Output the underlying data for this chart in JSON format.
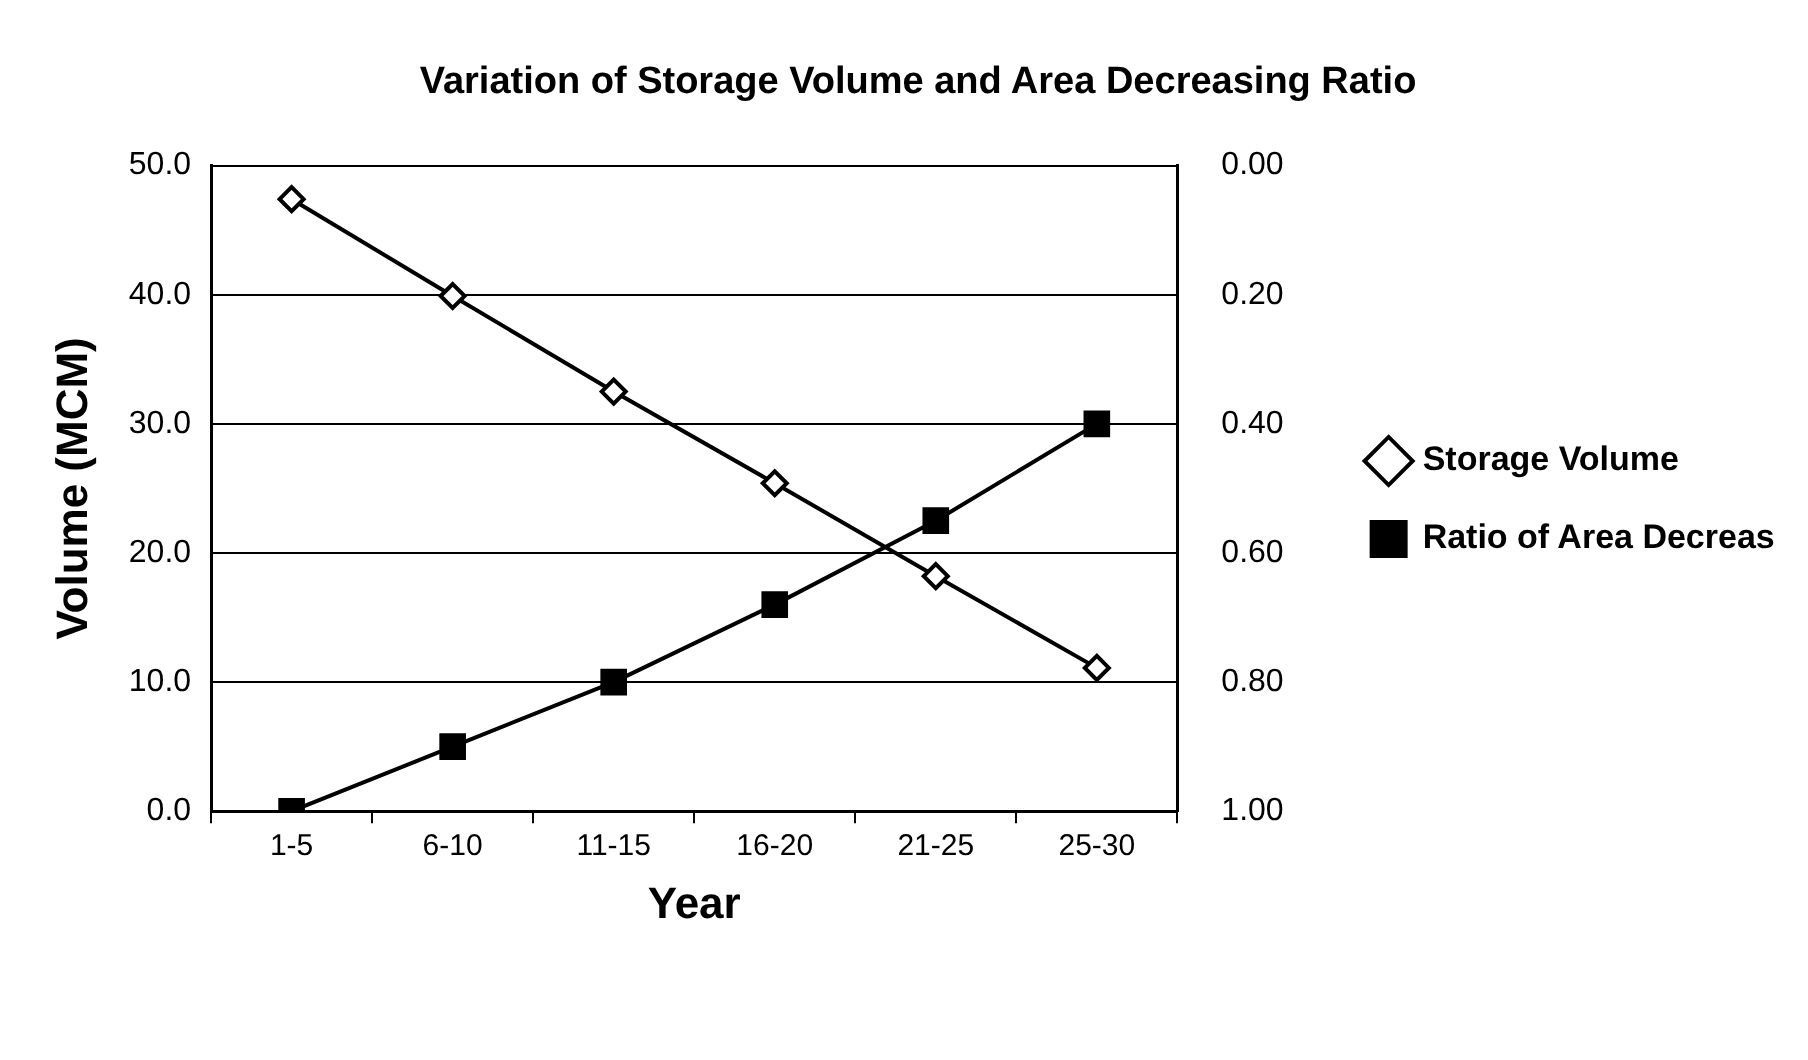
{
  "chart_data": {
    "type": "line",
    "title": "Variation of Storage Volume and Area Decreasing Ratio",
    "xlabel": "Year",
    "ylabel": "Volume (MCM)",
    "categories": [
      "1-5",
      "6-10",
      "11-15",
      "16-20",
      "21-25",
      "25-30"
    ],
    "series": [
      {
        "name": "Storage Volume",
        "color": "#000000",
        "marker": "diamond",
        "values": [
          47.4,
          39.9,
          32.5,
          25.4,
          18.2,
          11.1
        ]
      },
      {
        "name": "Ratio of Area Decreas",
        "color": "#000000",
        "marker": "square",
        "axis": "y2",
        "values": [
          1.0,
          0.9,
          0.8,
          0.68,
          0.55,
          0.4
        ]
      }
    ],
    "ylim": [
      0,
      50
    ],
    "yticks": [
      {
        "value": 0,
        "label": "0.0"
      },
      {
        "value": 10,
        "label": "10.0"
      },
      {
        "value": 20,
        "label": "20.0"
      },
      {
        "value": 30,
        "label": "30.0"
      },
      {
        "value": 40,
        "label": "40.0"
      },
      {
        "value": 50,
        "label": "50.0"
      }
    ],
    "y2lim": [
      1,
      0
    ],
    "y2ticks": [
      {
        "value": 0,
        "label": "0.00"
      },
      {
        "value": 0.2,
        "label": "0.20"
      },
      {
        "value": 0.4,
        "label": "0.40"
      },
      {
        "value": 0.6,
        "label": "0.60"
      },
      {
        "value": 0.8,
        "label": "0.80"
      },
      {
        "value": 1,
        "label": "1.00"
      }
    ],
    "grid": "y",
    "legend": "right",
    "line_style": "solid"
  }
}
